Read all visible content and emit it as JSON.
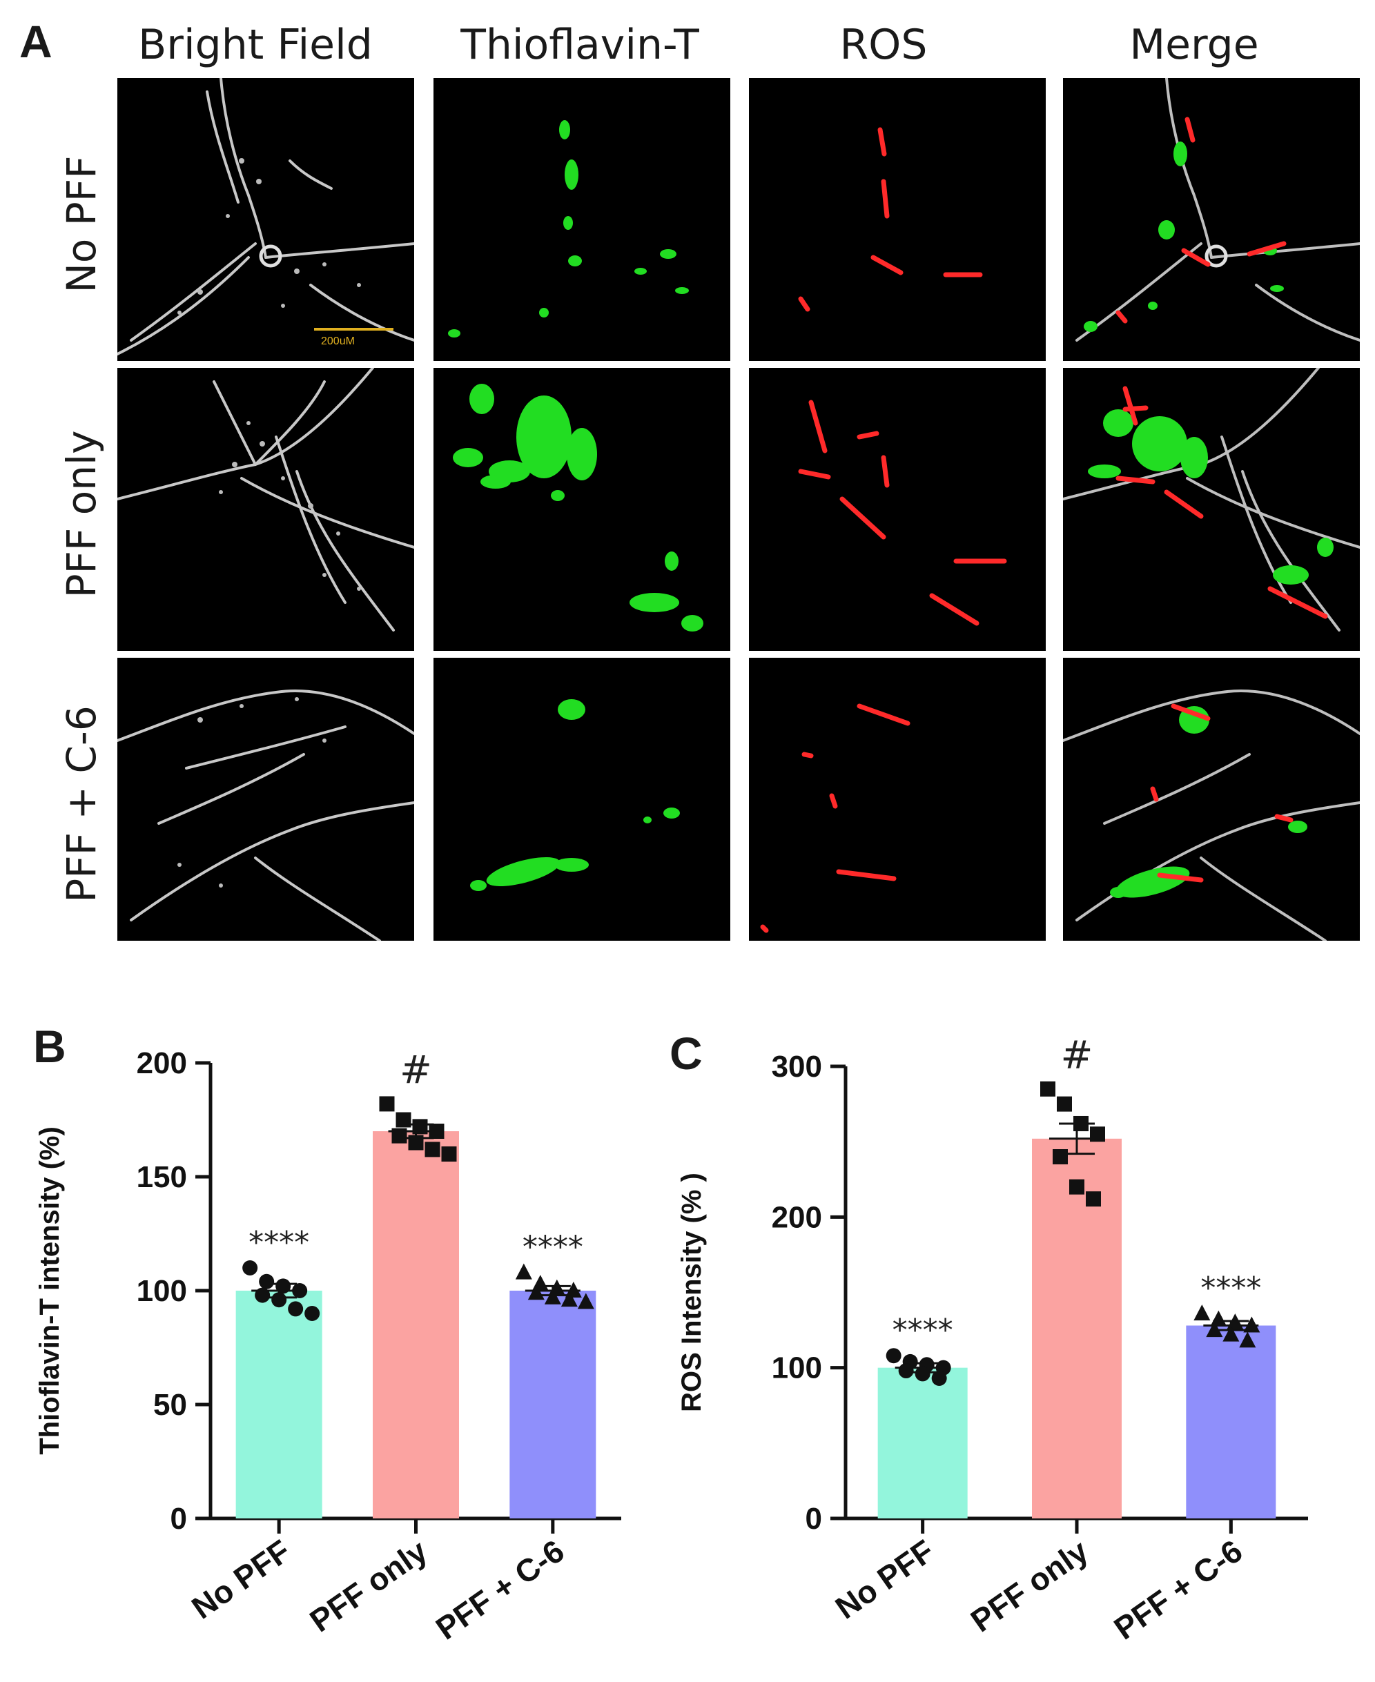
{
  "figure": {
    "panel_labels": {
      "a": "A",
      "b": "B",
      "c": "C"
    },
    "columns": [
      "Bright Field",
      "Thioflavin-T",
      "ROS",
      "Merge"
    ],
    "rows": [
      "No PFF",
      "PFF only",
      "PFF + C-6"
    ],
    "scale_bar_label": "200uM",
    "colors": {
      "thioflavin": "#22dd22",
      "ros": "#ff2a2a",
      "brightfield": "#c8c8c8"
    }
  },
  "chart_data": [
    {
      "type": "bar",
      "categories": [
        "No PFF",
        "PFF only",
        "PFF + C-6"
      ],
      "values": [
        100,
        170,
        100
      ],
      "errors": [
        3,
        3,
        2
      ],
      "colors": [
        "#93f5dc",
        "#fba3a1",
        "#8f8ffb"
      ],
      "points": [
        [
          110,
          104,
          102,
          100,
          98,
          96,
          92,
          90
        ],
        [
          182,
          175,
          172,
          170,
          168,
          165,
          162,
          160
        ],
        [
          108,
          103,
          101,
          100,
          99,
          97,
          96,
          95
        ]
      ],
      "markers": [
        "circle",
        "square",
        "triangle"
      ],
      "annotations": [
        "****",
        "#",
        "****"
      ],
      "xlabel": "",
      "ylabel": "Thioflavin-T intensity (%)",
      "ylim": [
        0,
        200
      ],
      "yticks": [
        "0",
        "50",
        "100",
        "150",
        "200"
      ],
      "grid": false
    },
    {
      "type": "bar",
      "categories": [
        "No PFF",
        "PFF only",
        "PFF + C-6"
      ],
      "values": [
        100,
        252,
        128
      ],
      "errors": [
        3,
        10,
        3
      ],
      "colors": [
        "#93f5dc",
        "#fba3a1",
        "#8f8ffb"
      ],
      "points": [
        [
          108,
          104,
          102,
          100,
          98,
          96,
          93
        ],
        [
          285,
          275,
          262,
          255,
          240,
          220,
          212
        ],
        [
          136,
          132,
          130,
          128,
          125,
          122,
          118
        ]
      ],
      "markers": [
        "circle",
        "square",
        "triangle"
      ],
      "annotations": [
        "****",
        "#",
        "****"
      ],
      "xlabel": "",
      "ylabel": "ROS Intensity (% )",
      "ylim": [
        0,
        300
      ],
      "yticks": [
        "0",
        "100",
        "200",
        "300"
      ],
      "grid": false
    }
  ]
}
